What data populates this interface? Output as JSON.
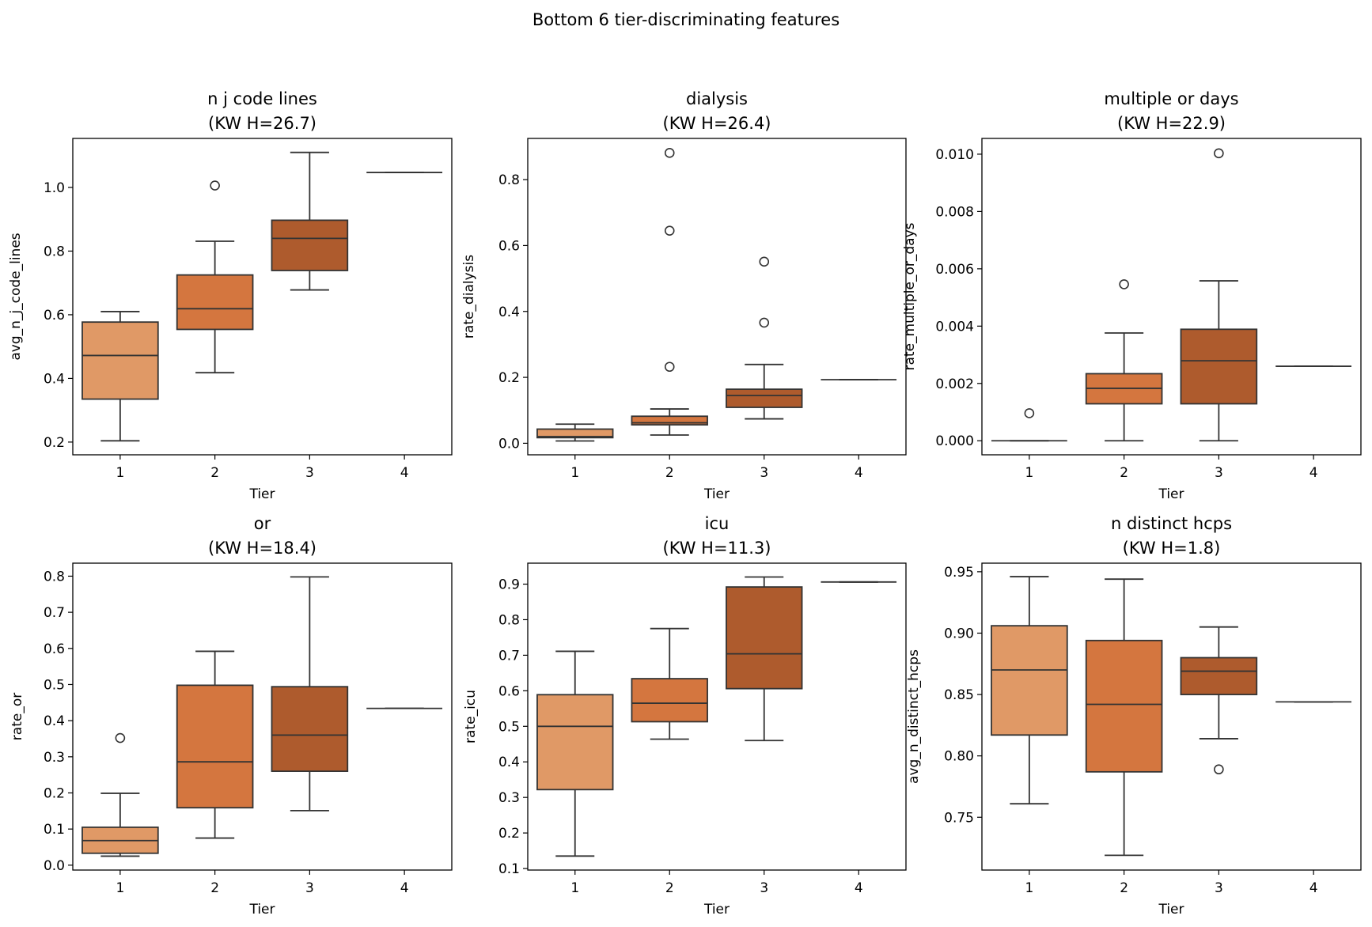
{
  "figure": {
    "suptitle": "Bottom 6 tier-discriminating features"
  },
  "colors": {
    "tier1": "#e09966",
    "tier2": "#d4763f",
    "tier3": "#ae5b2d",
    "edge": "#333333"
  },
  "chart_data": [
    {
      "type": "box",
      "title": "n j code lines",
      "subtitle": "(KW H=26.7)",
      "xlabel": "Tier",
      "ylabel": "avg_n_j_code_lines",
      "categories": [
        "1",
        "2",
        "3",
        "4"
      ],
      "ylim": [
        0.16,
        1.154
      ],
      "yticks": [
        "0.2",
        "0.4",
        "0.6",
        "0.8",
        "1.0"
      ],
      "boxes": [
        {
          "tier": "1",
          "low": 0.204,
          "q1": 0.335,
          "median": 0.472,
          "q3": 0.577,
          "high": 0.61,
          "outliers": []
        },
        {
          "tier": "2",
          "low": 0.418,
          "q1": 0.554,
          "median": 0.619,
          "q3": 0.725,
          "high": 0.831,
          "outliers": [
            1.006
          ]
        },
        {
          "tier": "3",
          "low": 0.678,
          "q1": 0.739,
          "median": 0.84,
          "q3": 0.897,
          "high": 1.11,
          "outliers": []
        },
        {
          "tier": "4",
          "low": 1.047,
          "q1": 1.047,
          "median": 1.047,
          "q3": 1.047,
          "high": 1.047,
          "outliers": []
        }
      ]
    },
    {
      "type": "box",
      "title": "dialysis",
      "subtitle": "(KW H=26.4)",
      "xlabel": "Tier",
      "ylabel": "rate_dialysis",
      "categories": [
        "1",
        "2",
        "3",
        "4"
      ],
      "ylim": [
        -0.035,
        0.925
      ],
      "yticks": [
        "0.0",
        "0.2",
        "0.4",
        "0.6",
        "0.8"
      ],
      "boxes": [
        {
          "tier": "1",
          "low": 0.007,
          "q1": 0.017,
          "median": 0.02,
          "q3": 0.043,
          "high": 0.058,
          "outliers": []
        },
        {
          "tier": "2",
          "low": 0.025,
          "q1": 0.056,
          "median": 0.062,
          "q3": 0.082,
          "high": 0.104,
          "outliers": [
            0.881,
            0.645,
            0.232
          ]
        },
        {
          "tier": "3",
          "low": 0.074,
          "q1": 0.109,
          "median": 0.145,
          "q3": 0.164,
          "high": 0.239,
          "outliers": [
            0.551,
            0.366
          ]
        },
        {
          "tier": "4",
          "low": 0.193,
          "q1": 0.193,
          "median": 0.193,
          "q3": 0.193,
          "high": 0.193,
          "outliers": []
        }
      ]
    },
    {
      "type": "box",
      "title": "multiple or days",
      "subtitle": "(KW H=22.9)",
      "xlabel": "Tier",
      "ylabel": "rate_multiple_or_days",
      "categories": [
        "1",
        "2",
        "3",
        "4"
      ],
      "ylim": [
        -0.00049,
        0.01055
      ],
      "yticks": [
        "0.000",
        "0.002",
        "0.004",
        "0.006",
        "0.008",
        "0.010"
      ],
      "boxes": [
        {
          "tier": "1",
          "low": 0,
          "q1": 0,
          "median": 0,
          "q3": 0,
          "high": 0,
          "outliers": [
            0.00096
          ]
        },
        {
          "tier": "2",
          "low": 0,
          "q1": 0.00129,
          "median": 0.00183,
          "q3": 0.00234,
          "high": 0.00376,
          "outliers": [
            0.00546
          ]
        },
        {
          "tier": "3",
          "low": 0,
          "q1": 0.00129,
          "median": 0.00279,
          "q3": 0.00389,
          "high": 0.00558,
          "outliers": [
            0.01003
          ]
        },
        {
          "tier": "4",
          "low": 0.0026,
          "q1": 0.0026,
          "median": 0.0026,
          "q3": 0.0026,
          "high": 0.0026,
          "outliers": []
        }
      ]
    },
    {
      "type": "box",
      "title": "or",
      "subtitle": "(KW H=18.4)",
      "xlabel": "Tier",
      "ylabel": "rate_or",
      "categories": [
        "1",
        "2",
        "3",
        "4"
      ],
      "ylim": [
        -0.0135,
        0.836
      ],
      "yticks": [
        "0.0",
        "0.1",
        "0.2",
        "0.3",
        "0.4",
        "0.5",
        "0.6",
        "0.7",
        "0.8"
      ],
      "boxes": [
        {
          "tier": "1",
          "low": 0.025,
          "q1": 0.033,
          "median": 0.068,
          "q3": 0.105,
          "high": 0.199,
          "outliers": [
            0.352
          ]
        },
        {
          "tier": "2",
          "low": 0.075,
          "q1": 0.159,
          "median": 0.286,
          "q3": 0.498,
          "high": 0.592,
          "outliers": []
        },
        {
          "tier": "3",
          "low": 0.151,
          "q1": 0.26,
          "median": 0.36,
          "q3": 0.494,
          "high": 0.798,
          "outliers": []
        },
        {
          "tier": "4",
          "low": 0.434,
          "q1": 0.434,
          "median": 0.434,
          "q3": 0.434,
          "high": 0.434,
          "outliers": []
        }
      ]
    },
    {
      "type": "box",
      "title": "icu",
      "subtitle": "(KW H=11.3)",
      "xlabel": "Tier",
      "ylabel": "rate_icu",
      "categories": [
        "1",
        "2",
        "3",
        "4"
      ],
      "ylim": [
        0.0957,
        0.959
      ],
      "yticks": [
        "0.1",
        "0.2",
        "0.3",
        "0.4",
        "0.5",
        "0.6",
        "0.7",
        "0.8",
        "0.9"
      ],
      "boxes": [
        {
          "tier": "1",
          "low": 0.135,
          "q1": 0.322,
          "median": 0.5,
          "q3": 0.589,
          "high": 0.711,
          "outliers": []
        },
        {
          "tier": "2",
          "low": 0.464,
          "q1": 0.513,
          "median": 0.565,
          "q3": 0.634,
          "high": 0.775,
          "outliers": []
        },
        {
          "tier": "3",
          "low": 0.46,
          "q1": 0.606,
          "median": 0.704,
          "q3": 0.892,
          "high": 0.92,
          "outliers": []
        },
        {
          "tier": "4",
          "low": 0.906,
          "q1": 0.906,
          "median": 0.906,
          "q3": 0.906,
          "high": 0.906,
          "outliers": []
        }
      ]
    },
    {
      "type": "box",
      "title": "n distinct hcps",
      "subtitle": "(KW H=1.8)",
      "xlabel": "Tier",
      "ylabel": "avg_n_distinct_hcps",
      "categories": [
        "1",
        "2",
        "3",
        "4"
      ],
      "ylim": [
        0.707,
        0.957
      ],
      "yticks": [
        "0.75",
        "0.80",
        "0.85",
        "0.90",
        "0.95"
      ],
      "boxes": [
        {
          "tier": "1",
          "low": 0.761,
          "q1": 0.817,
          "median": 0.87,
          "q3": 0.906,
          "high": 0.946,
          "outliers": []
        },
        {
          "tier": "2",
          "low": 0.719,
          "q1": 0.787,
          "median": 0.842,
          "q3": 0.894,
          "high": 0.944,
          "outliers": []
        },
        {
          "tier": "3",
          "low": 0.814,
          "q1": 0.85,
          "median": 0.869,
          "q3": 0.88,
          "high": 0.905,
          "outliers": [
            0.789
          ]
        },
        {
          "tier": "4",
          "low": 0.844,
          "q1": 0.844,
          "median": 0.844,
          "q3": 0.844,
          "high": 0.844,
          "outliers": []
        }
      ]
    }
  ]
}
